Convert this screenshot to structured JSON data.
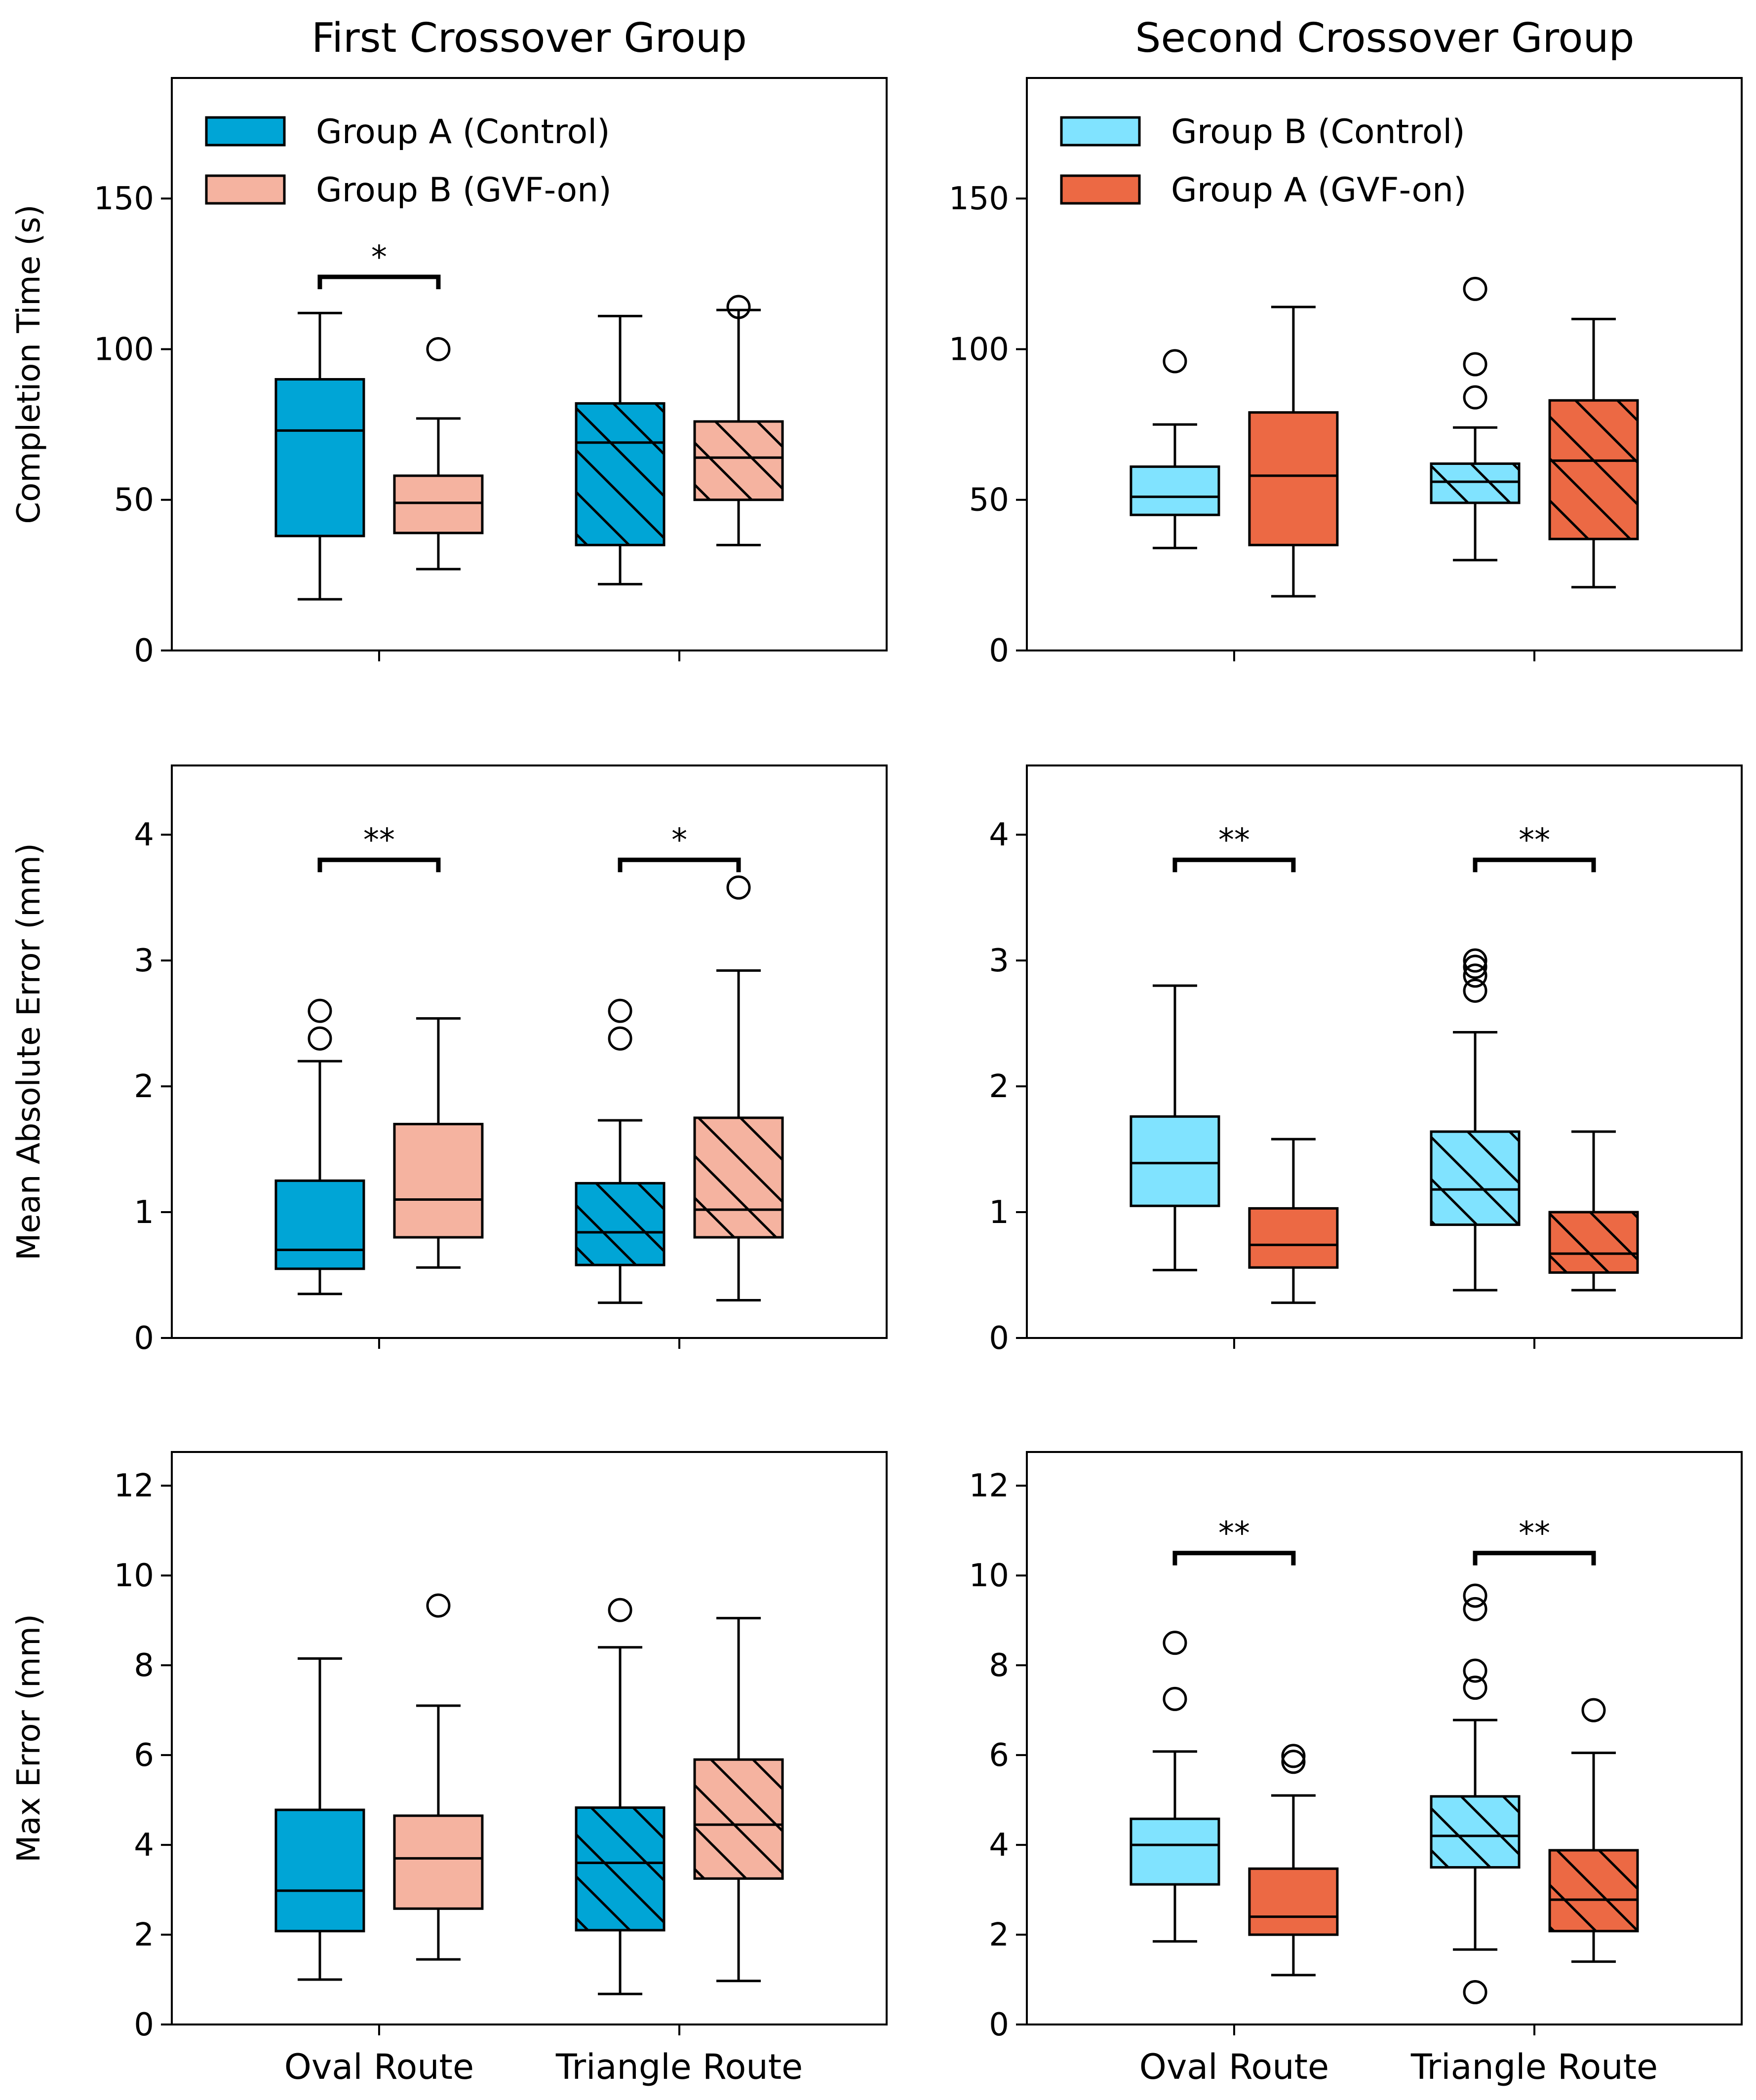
{
  "chart_data": {
    "type": "boxplot",
    "column_titles": [
      "First Crossover Group",
      "Second Crossover Group"
    ],
    "categories": [
      "Oval Route",
      "Triangle Route"
    ],
    "colors": {
      "groupA_control": "#00a5d6",
      "groupB_gvf": "#f5b3a0",
      "groupB_control": "#80e3ff",
      "groupA_gvf": "#ec6944"
    },
    "legends": [
      [
        {
          "label": "Group A (Control)",
          "color": "#00a5d6"
        },
        {
          "label": "Group B (GVF-on)",
          "color": "#f5b3a0"
        }
      ],
      [
        {
          "label": "Group B (Control)",
          "color": "#80e3ff"
        },
        {
          "label": "Group A (GVF-on)",
          "color": "#ec6944"
        }
      ]
    ],
    "rows": [
      {
        "ylabel": "Completion Time (s)",
        "ylim": [
          0,
          190
        ],
        "yticks": [
          0,
          50,
          100,
          150
        ],
        "panels": [
          {
            "boxes": [
              {
                "series": "Group A (Control)",
                "category": "Oval Route",
                "color": "#00a5d6",
                "hatch": false,
                "whislo": 17,
                "q1": 38,
                "med": 73,
                "q3": 90,
                "whishi": 112,
                "fliers": []
              },
              {
                "series": "Group B (GVF-on)",
                "category": "Oval Route",
                "color": "#f5b3a0",
                "hatch": false,
                "whislo": 27,
                "q1": 39,
                "med": 49,
                "q3": 58,
                "whishi": 77,
                "fliers": [
                  100
                ]
              },
              {
                "series": "Group A (Control)",
                "category": "Triangle Route",
                "color": "#00a5d6",
                "hatch": true,
                "whislo": 22,
                "q1": 35,
                "med": 69,
                "q3": 82,
                "whishi": 111,
                "fliers": []
              },
              {
                "series": "Group B (GVF-on)",
                "category": "Triangle Route",
                "color": "#f5b3a0",
                "hatch": true,
                "whislo": 35,
                "q1": 50,
                "med": 64,
                "q3": 76,
                "whishi": 113,
                "fliers": [
                  114
                ]
              }
            ],
            "significance": [
              {
                "category": "Oval Route",
                "label": "*",
                "y": 124
              }
            ]
          },
          {
            "boxes": [
              {
                "series": "Group B (Control)",
                "category": "Oval Route",
                "color": "#80e3ff",
                "hatch": false,
                "whislo": 34,
                "q1": 45,
                "med": 51,
                "q3": 61,
                "whishi": 75,
                "fliers": [
                  96
                ]
              },
              {
                "series": "Group A (GVF-on)",
                "category": "Oval Route",
                "color": "#ec6944",
                "hatch": false,
                "whislo": 18,
                "q1": 35,
                "med": 58,
                "q3": 79,
                "whishi": 114,
                "fliers": []
              },
              {
                "series": "Group B (Control)",
                "category": "Triangle Route",
                "color": "#80e3ff",
                "hatch": true,
                "whislo": 30,
                "q1": 49,
                "med": 56,
                "q3": 62,
                "whishi": 74,
                "fliers": [
                  84,
                  95,
                  120
                ]
              },
              {
                "series": "Group A (GVF-on)",
                "category": "Triangle Route",
                "color": "#ec6944",
                "hatch": true,
                "whislo": 21,
                "q1": 37,
                "med": 63,
                "q3": 83,
                "whishi": 110,
                "fliers": []
              }
            ],
            "significance": []
          }
        ]
      },
      {
        "ylabel": "Mean Absolute Error (mm)",
        "ylim": [
          0,
          4.55
        ],
        "yticks": [
          0,
          1,
          2,
          3,
          4
        ],
        "panels": [
          {
            "boxes": [
              {
                "series": "Group A (Control)",
                "category": "Oval Route",
                "color": "#00a5d6",
                "hatch": false,
                "whislo": 0.35,
                "q1": 0.55,
                "med": 0.7,
                "q3": 1.25,
                "whishi": 2.2,
                "fliers": [
                  2.38,
                  2.6
                ]
              },
              {
                "series": "Group B (GVF-on)",
                "category": "Oval Route",
                "color": "#f5b3a0",
                "hatch": false,
                "whislo": 0.56,
                "q1": 0.8,
                "med": 1.1,
                "q3": 1.7,
                "whishi": 2.54,
                "fliers": []
              },
              {
                "series": "Group A (Control)",
                "category": "Triangle Route",
                "color": "#00a5d6",
                "hatch": true,
                "whislo": 0.28,
                "q1": 0.58,
                "med": 0.84,
                "q3": 1.23,
                "whishi": 1.73,
                "fliers": [
                  2.38,
                  2.6
                ]
              },
              {
                "series": "Group B (GVF-on)",
                "category": "Triangle Route",
                "color": "#f5b3a0",
                "hatch": true,
                "whislo": 0.3,
                "q1": 0.8,
                "med": 1.02,
                "q3": 1.75,
                "whishi": 2.92,
                "fliers": [
                  3.58
                ]
              }
            ],
            "significance": [
              {
                "category": "Oval Route",
                "label": "**",
                "y": 3.8
              },
              {
                "category": "Triangle Route",
                "label": "*",
                "y": 3.8
              }
            ]
          },
          {
            "boxes": [
              {
                "series": "Group B (Control)",
                "category": "Oval Route",
                "color": "#80e3ff",
                "hatch": false,
                "whislo": 0.54,
                "q1": 1.05,
                "med": 1.39,
                "q3": 1.76,
                "whishi": 2.8,
                "fliers": []
              },
              {
                "series": "Group A (GVF-on)",
                "category": "Oval Route",
                "color": "#ec6944",
                "hatch": false,
                "whislo": 0.28,
                "q1": 0.56,
                "med": 0.74,
                "q3": 1.03,
                "whishi": 1.58,
                "fliers": []
              },
              {
                "series": "Group B (Control)",
                "category": "Triangle Route",
                "color": "#80e3ff",
                "hatch": true,
                "whislo": 0.38,
                "q1": 0.9,
                "med": 1.18,
                "q3": 1.64,
                "whishi": 2.43,
                "fliers": [
                  2.76,
                  2.88,
                  2.95,
                  3.0
                ]
              },
              {
                "series": "Group A (GVF-on)",
                "category": "Triangle Route",
                "color": "#ec6944",
                "hatch": true,
                "whislo": 0.38,
                "q1": 0.52,
                "med": 0.67,
                "q3": 1.0,
                "whishi": 1.64,
                "fliers": []
              }
            ],
            "significance": [
              {
                "category": "Oval Route",
                "label": "**",
                "y": 3.8
              },
              {
                "category": "Triangle Route",
                "label": "**",
                "y": 3.8
              }
            ]
          }
        ]
      },
      {
        "ylabel": "Max Error (mm)",
        "ylim": [
          0,
          12.75
        ],
        "yticks": [
          0,
          2,
          4,
          6,
          8,
          10,
          12
        ],
        "xticklabels_visible": true,
        "panels": [
          {
            "boxes": [
              {
                "series": "Group A (Control)",
                "category": "Oval Route",
                "color": "#00a5d6",
                "hatch": false,
                "whislo": 1.0,
                "q1": 2.08,
                "med": 2.98,
                "q3": 4.78,
                "whishi": 8.15,
                "fliers": []
              },
              {
                "series": "Group B (GVF-on)",
                "category": "Oval Route",
                "color": "#f5b3a0",
                "hatch": false,
                "whislo": 1.45,
                "q1": 2.58,
                "med": 3.7,
                "q3": 4.65,
                "whishi": 7.1,
                "fliers": [
                  9.33
                ]
              },
              {
                "series": "Group A (Control)",
                "category": "Triangle Route",
                "color": "#00a5d6",
                "hatch": true,
                "whislo": 0.68,
                "q1": 2.1,
                "med": 3.6,
                "q3": 4.83,
                "whishi": 8.4,
                "fliers": [
                  9.23
                ]
              },
              {
                "series": "Group B (GVF-on)",
                "category": "Triangle Route",
                "color": "#f5b3a0",
                "hatch": true,
                "whislo": 0.97,
                "q1": 3.25,
                "med": 4.45,
                "q3": 5.9,
                "whishi": 9.05,
                "fliers": []
              }
            ],
            "significance": []
          },
          {
            "boxes": [
              {
                "series": "Group B (Control)",
                "category": "Oval Route",
                "color": "#80e3ff",
                "hatch": false,
                "whislo": 1.85,
                "q1": 3.12,
                "med": 4.0,
                "q3": 4.58,
                "whishi": 6.08,
                "fliers": [
                  7.25,
                  8.5
                ]
              },
              {
                "series": "Group A (GVF-on)",
                "category": "Oval Route",
                "color": "#ec6944",
                "hatch": false,
                "whislo": 1.1,
                "q1": 2.0,
                "med": 2.4,
                "q3": 3.47,
                "whishi": 5.1,
                "fliers": [
                  5.85,
                  5.98
                ]
              },
              {
                "series": "Group B (Control)",
                "category": "Triangle Route",
                "color": "#80e3ff",
                "hatch": true,
                "whislo": 1.67,
                "q1": 3.5,
                "med": 4.2,
                "q3": 5.08,
                "whishi": 6.78,
                "fliers": [
                  0.72,
                  7.5,
                  7.88,
                  9.25,
                  9.55
                ]
              },
              {
                "series": "Group A (GVF-on)",
                "category": "Triangle Route",
                "color": "#ec6944",
                "hatch": true,
                "whislo": 1.4,
                "q1": 2.08,
                "med": 2.78,
                "q3": 3.88,
                "whishi": 6.05,
                "fliers": [
                  7.0
                ]
              }
            ],
            "significance": [
              {
                "category": "Oval Route",
                "label": "**",
                "y": 10.5
              },
              {
                "category": "Triangle Route",
                "label": "**",
                "y": 10.5
              }
            ]
          }
        ]
      }
    ]
  }
}
